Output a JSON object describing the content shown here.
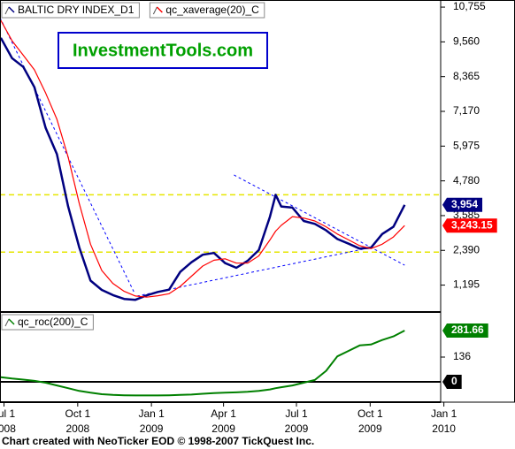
{
  "chart_data": [
    {
      "type": "line",
      "legend": "top-left",
      "annotation": "InvestmentTools.com",
      "x": [
        "2008-06-27",
        "2008-07-11",
        "2008-07-25",
        "2008-08-08",
        "2008-08-22",
        "2008-09-05",
        "2008-09-19",
        "2008-10-03",
        "2008-10-17",
        "2008-10-31",
        "2008-11-14",
        "2008-11-28",
        "2008-12-12",
        "2008-12-26",
        "2009-01-09",
        "2009-01-23",
        "2009-02-06",
        "2009-02-20",
        "2009-03-06",
        "2009-03-20",
        "2009-04-03",
        "2009-04-17",
        "2009-05-01",
        "2009-05-15",
        "2009-05-29",
        "2009-06-05",
        "2009-06-12",
        "2009-06-26",
        "2009-07-10",
        "2009-07-24",
        "2009-08-07",
        "2009-08-21",
        "2009-09-04",
        "2009-09-18",
        "2009-10-02",
        "2009-10-16",
        "2009-10-30",
        "2009-11-13"
      ],
      "xlim": [
        "2008-06-26",
        "2009-12-28"
      ],
      "series": [
        {
          "name": "BALTIC DRY INDEX_D1",
          "color": "#000080",
          "values": [
            9700,
            9000,
            8700,
            8000,
            6600,
            5700,
            3900,
            2490,
            1350,
            1030,
            850,
            720,
            690,
            840,
            960,
            1040,
            1650,
            1980,
            2240,
            2300,
            1950,
            1790,
            2030,
            2400,
            3550,
            4300,
            3900,
            3860,
            3400,
            3300,
            3080,
            2780,
            2620,
            2450,
            2480,
            2950,
            3200,
            3954
          ],
          "value_labels": [
            null,
            null,
            null,
            null,
            null,
            null,
            null,
            null,
            null,
            null,
            null,
            null,
            null,
            null,
            null,
            null,
            null,
            null,
            null,
            null,
            null,
            null,
            null,
            null,
            null,
            null,
            null,
            null,
            null,
            null,
            null,
            null,
            null,
            null,
            null,
            null,
            null,
            "3,954"
          ]
        },
        {
          "name": "qc_xaverage(20)_C",
          "color": "#ff0000",
          "values": [
            10300,
            9600,
            9100,
            8600,
            7800,
            6900,
            5600,
            4000,
            2600,
            1700,
            1250,
            980,
            820,
            780,
            830,
            900,
            1150,
            1500,
            1850,
            2050,
            2100,
            1950,
            1950,
            2200,
            2750,
            3050,
            3250,
            3550,
            3500,
            3400,
            3200,
            2950,
            2750,
            2550,
            2450,
            2600,
            2850,
            3243.15
          ],
          "value_labels": [
            null,
            null,
            null,
            null,
            null,
            null,
            null,
            null,
            null,
            null,
            null,
            null,
            null,
            null,
            null,
            null,
            null,
            null,
            null,
            null,
            null,
            null,
            null,
            null,
            null,
            null,
            null,
            null,
            null,
            null,
            null,
            null,
            null,
            null,
            null,
            null,
            null,
            "3,243.15"
          ]
        }
      ],
      "ylim": [
        270,
        11000
      ],
      "yticks": [
        {
          "value": 1195,
          "label": "1,195"
        },
        {
          "value": 2390,
          "label": "2,390"
        },
        {
          "value": 3585,
          "label": "3,585"
        },
        {
          "value": 4780,
          "label": "4,780"
        },
        {
          "value": 5975,
          "label": "5,975"
        },
        {
          "value": 7170,
          "label": "7,170"
        },
        {
          "value": 8365,
          "label": "8,365"
        },
        {
          "value": 9560,
          "label": "9,560"
        },
        {
          "value": 10755,
          "label": "10,755"
        }
      ],
      "hlines": {
        "color": "#e6e600",
        "values": [
          4300,
          2330
        ]
      },
      "trendlines": {
        "color": "#0000ff",
        "lines": [
          {
            "x": [
              "2008-06-26",
              "2008-12-10"
            ],
            "y": [
              10393,
              969
            ]
          },
          {
            "x": [
              "2009-04-14",
              "2009-11-13"
            ],
            "y": [
              4982,
              1881
            ]
          },
          {
            "x": [
              "2008-12-14",
              "2009-10-02"
            ],
            "y": [
              817,
              2489
            ]
          }
        ]
      }
    },
    {
      "type": "line",
      "legend": "top-left",
      "x": [
        "2008-06-27",
        "2008-07-11",
        "2008-07-25",
        "2008-08-08",
        "2008-08-22",
        "2008-09-05",
        "2008-09-19",
        "2008-10-03",
        "2008-10-17",
        "2008-10-31",
        "2008-11-14",
        "2008-11-28",
        "2008-12-12",
        "2008-12-26",
        "2009-01-09",
        "2009-01-23",
        "2009-02-06",
        "2009-02-20",
        "2009-03-06",
        "2009-03-20",
        "2009-04-03",
        "2009-04-17",
        "2009-05-01",
        "2009-05-15",
        "2009-05-29",
        "2009-06-05",
        "2009-06-12",
        "2009-06-26",
        "2009-07-10",
        "2009-07-24",
        "2009-08-07",
        "2009-08-21",
        "2009-09-04",
        "2009-09-18",
        "2009-10-02",
        "2009-10-16",
        "2009-10-30",
        "2009-11-13"
      ],
      "xlim": [
        "2008-06-26",
        "2009-12-28"
      ],
      "series": [
        {
          "name": "qc_roc(200)_C",
          "color": "#008000",
          "values": [
            25,
            18,
            12,
            5,
            -5,
            -20,
            -35,
            -50,
            -60,
            -68,
            -72,
            -74,
            -75,
            -75,
            -75,
            -74,
            -72,
            -70,
            -66,
            -62,
            -60,
            -58,
            -55,
            -50,
            -42,
            -35,
            -30,
            -20,
            -5,
            10,
            60,
            140,
            170,
            200,
            205,
            230,
            250,
            281.66
          ],
          "value_labels": [
            null,
            null,
            null,
            null,
            null,
            null,
            null,
            null,
            null,
            null,
            null,
            null,
            null,
            null,
            null,
            null,
            null,
            null,
            null,
            null,
            null,
            null,
            null,
            null,
            null,
            null,
            null,
            null,
            null,
            null,
            null,
            null,
            null,
            null,
            null,
            null,
            null,
            "281.66"
          ]
        }
      ],
      "ylim": [
        -112,
        384
      ],
      "yticks": [
        0,
        136
      ],
      "xticks": [
        {
          "value": "2008-07-01",
          "label": [
            "Jul 1",
            "2008"
          ]
        },
        {
          "value": "2008-10-01",
          "label": [
            "Oct 1",
            "2008"
          ]
        },
        {
          "value": "2009-01-01",
          "label": [
            "Jan 1",
            "2009"
          ]
        },
        {
          "value": "2009-04-01",
          "label": [
            "Apr 1",
            "2009"
          ]
        },
        {
          "value": "2009-07-01",
          "label": [
            "Jul 1",
            "2009"
          ]
        },
        {
          "value": "2009-10-01",
          "label": [
            "Oct 1",
            "2009"
          ]
        },
        {
          "value": "2010-01-01",
          "label": [
            "Jan 1",
            "2010"
          ]
        }
      ]
    }
  ],
  "footer": "Chart created with NeoTicker EOD © 1998-2007 TickQuest Inc."
}
